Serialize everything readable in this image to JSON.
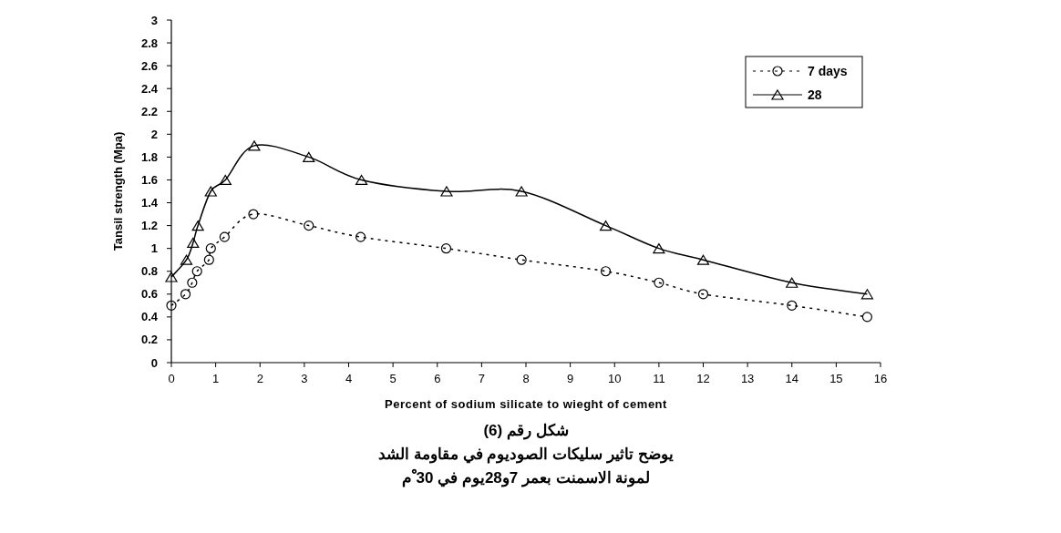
{
  "chart_data": {
    "type": "line",
    "xlabel": "Percent of sodium silicate to wieght of cement",
    "ylabel": "Tansil strength (Mpa)",
    "xlim": [
      0,
      16
    ],
    "ylim": [
      0,
      3
    ],
    "xticks": [
      0,
      1,
      2,
      3,
      4,
      5,
      6,
      7,
      8,
      9,
      10,
      11,
      12,
      13,
      14,
      15,
      16
    ],
    "yticks": [
      0,
      {
        "value": 0.2,
        "label": "0.2"
      },
      {
        "value": 0.4,
        "label": "0.4"
      },
      {
        "value": 0.6,
        "label": "0.6"
      },
      {
        "value": 0.8,
        "label": "0.8"
      },
      1,
      {
        "value": 1.2,
        "label": "1.2"
      },
      {
        "value": 1.4,
        "label": "1.4"
      },
      {
        "value": 1.6,
        "label": "1.6"
      },
      {
        "value": 1.8,
        "label": "1.8"
      },
      2,
      {
        "value": 2.2,
        "label": "2.2"
      },
      {
        "value": 2.4,
        "label": "2.4"
      },
      {
        "value": 2.6,
        "label": "2.6"
      },
      {
        "value": 2.8,
        "label": "2.8"
      },
      3
    ],
    "legend": "top right",
    "series": [
      {
        "name": "7 days",
        "type": "line",
        "color": "#000000",
        "marker": "circle",
        "line_style": "dotted",
        "x": [
          0,
          0.32,
          0.47,
          0.58,
          0.85,
          0.89,
          1.2,
          1.85,
          3.1,
          4.27,
          6.2,
          7.9,
          9.8,
          11,
          12,
          14,
          15.7
        ],
        "values": [
          0.5,
          0.6,
          0.7,
          0.8,
          0.9,
          1.0,
          1.1,
          1.3,
          1.2,
          1.1,
          1.0,
          0.9,
          0.8,
          0.7,
          0.6,
          0.5,
          0.4
        ]
      },
      {
        "name": "28",
        "type": "line",
        "color": "#000000",
        "marker": "triangle",
        "line_style": "solid",
        "x": [
          0,
          0.34,
          0.49,
          0.6,
          0.89,
          1.22,
          1.87,
          3.1,
          4.29,
          6.21,
          7.9,
          9.8,
          11,
          12,
          14,
          15.7
        ],
        "values": [
          0.75,
          0.9,
          1.05,
          1.2,
          1.5,
          1.6,
          1.9,
          1.8,
          1.6,
          1.5,
          1.5,
          1.2,
          1.0,
          0.9,
          0.7,
          0.6
        ]
      }
    ],
    "annotations": [
      "شكل رقم (6)",
      "يوضح تاثير سليكات الصوديوم في مقاومة الشد",
      "لمونة الاسمنت بعمر 7و28يوم في 30 ْم"
    ]
  }
}
